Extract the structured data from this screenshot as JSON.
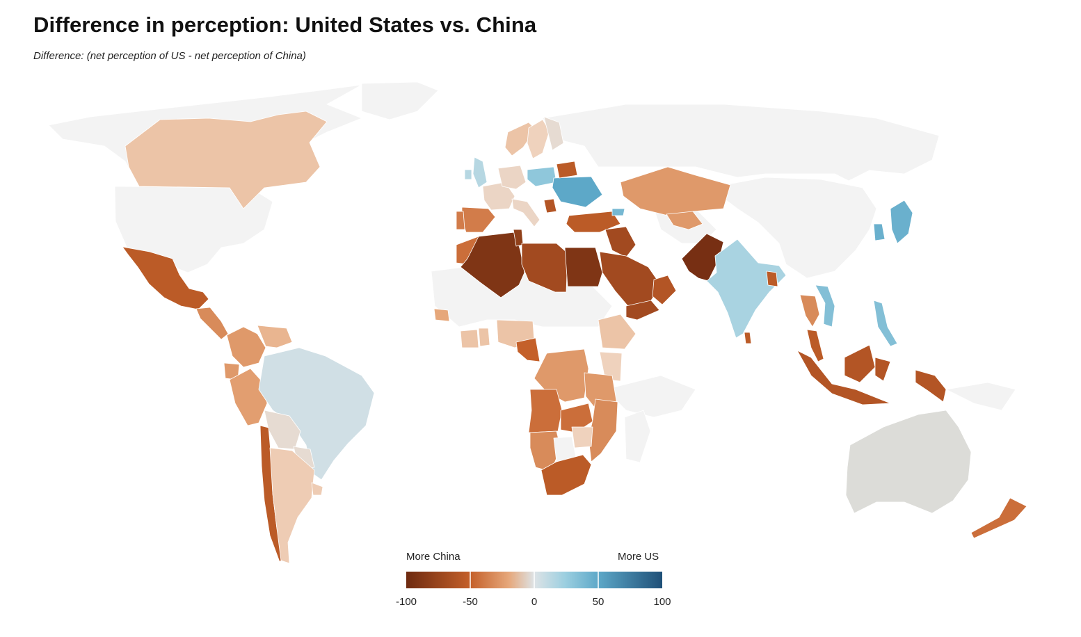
{
  "title": "Difference in perception: United States vs. China",
  "subtitle": "Difference: (net perception of US - net perception of China)",
  "legend": {
    "left_label": "More China",
    "right_label": "More US",
    "domain": [
      -100,
      100
    ],
    "ticks": [
      "-100",
      "-50",
      "0",
      "50",
      "100"
    ],
    "colors": {
      "-100": "#6e2a10",
      "-50": "#c4602a",
      "-25": "#e6a77a",
      "-10": "#efd2bd",
      "0": "#dde3e6",
      "25": "#9ccfe0",
      "50": "#5da8c8",
      "100": "#1f5078"
    },
    "no_data_color": "#f3f3f3",
    "neutral_gray": "#dcdcd8"
  },
  "chart_data": {
    "type": "choropleth",
    "metric": "net perception of US - net perception of China",
    "regions": [
      {
        "name": "Canada",
        "value": -15
      },
      {
        "name": "United States",
        "value": null
      },
      {
        "name": "Mexico",
        "value": -55
      },
      {
        "name": "Central America",
        "value": -35
      },
      {
        "name": "Colombia",
        "value": -30
      },
      {
        "name": "Venezuela",
        "value": -20
      },
      {
        "name": "Ecuador",
        "value": -30
      },
      {
        "name": "Peru",
        "value": -28
      },
      {
        "name": "Brazil",
        "value": 5
      },
      {
        "name": "Bolivia",
        "value": -5
      },
      {
        "name": "Paraguay",
        "value": -5
      },
      {
        "name": "Chile",
        "value": -55
      },
      {
        "name": "Argentina",
        "value": -12
      },
      {
        "name": "Uruguay",
        "value": -12
      },
      {
        "name": "United Kingdom",
        "value": 15
      },
      {
        "name": "Ireland",
        "value": 15
      },
      {
        "name": "France",
        "value": -8
      },
      {
        "name": "Germany",
        "value": -8
      },
      {
        "name": "Spain",
        "value": -40
      },
      {
        "name": "Portugal",
        "value": -40
      },
      {
        "name": "Italy",
        "value": -8
      },
      {
        "name": "Norway",
        "value": -15
      },
      {
        "name": "Sweden",
        "value": -10
      },
      {
        "name": "Finland",
        "value": -5
      },
      {
        "name": "Poland",
        "value": 30
      },
      {
        "name": "Ukraine",
        "value": 50
      },
      {
        "name": "Belarus",
        "value": -55
      },
      {
        "name": "Serbia",
        "value": -60
      },
      {
        "name": "Turkey",
        "value": -55
      },
      {
        "name": "Georgia",
        "value": 40
      },
      {
        "name": "Kazakhstan",
        "value": -30
      },
      {
        "name": "Uzbekistan",
        "value": -30
      },
      {
        "name": "Morocco",
        "value": -45
      },
      {
        "name": "Algeria",
        "value": -90
      },
      {
        "name": "Tunisia",
        "value": -80
      },
      {
        "name": "Libya",
        "value": -70
      },
      {
        "name": "Egypt",
        "value": -90
      },
      {
        "name": "Iraq",
        "value": -70
      },
      {
        "name": "Saudi Arabia",
        "value": -70
      },
      {
        "name": "Yemen",
        "value": -70
      },
      {
        "name": "Oman",
        "value": -60
      },
      {
        "name": "Pakistan",
        "value": -95
      },
      {
        "name": "India",
        "value": 20
      },
      {
        "name": "Bangladesh",
        "value": -55
      },
      {
        "name": "Sri Lanka",
        "value": -55
      },
      {
        "name": "Thailand",
        "value": -35
      },
      {
        "name": "Vietnam",
        "value": 35
      },
      {
        "name": "Philippines",
        "value": 35
      },
      {
        "name": "South Korea",
        "value": 45
      },
      {
        "name": "Japan",
        "value": 45
      },
      {
        "name": "Malaysia",
        "value": -55
      },
      {
        "name": "Indonesia",
        "value": -60
      },
      {
        "name": "Papua New Guinea",
        "value": -60
      },
      {
        "name": "Australia",
        "value": 0
      },
      {
        "name": "New Zealand",
        "value": -45
      },
      {
        "name": "Senegal",
        "value": -25
      },
      {
        "name": "Ivory Coast",
        "value": -15
      },
      {
        "name": "Ghana",
        "value": -15
      },
      {
        "name": "Nigeria",
        "value": -15
      },
      {
        "name": "Cameroon",
        "value": -50
      },
      {
        "name": "Ethiopia",
        "value": -15
      },
      {
        "name": "Kenya",
        "value": -10
      },
      {
        "name": "DR Congo",
        "value": -30
      },
      {
        "name": "Tanzania",
        "value": -30
      },
      {
        "name": "Angola",
        "value": -45
      },
      {
        "name": "Zambia",
        "value": -45
      },
      {
        "name": "Mozambique",
        "value": -35
      },
      {
        "name": "Namibia",
        "value": -35
      },
      {
        "name": "Botswana",
        "value": null
      },
      {
        "name": "Zimbabwe",
        "value": -10
      },
      {
        "name": "South Africa",
        "value": -55
      }
    ]
  }
}
